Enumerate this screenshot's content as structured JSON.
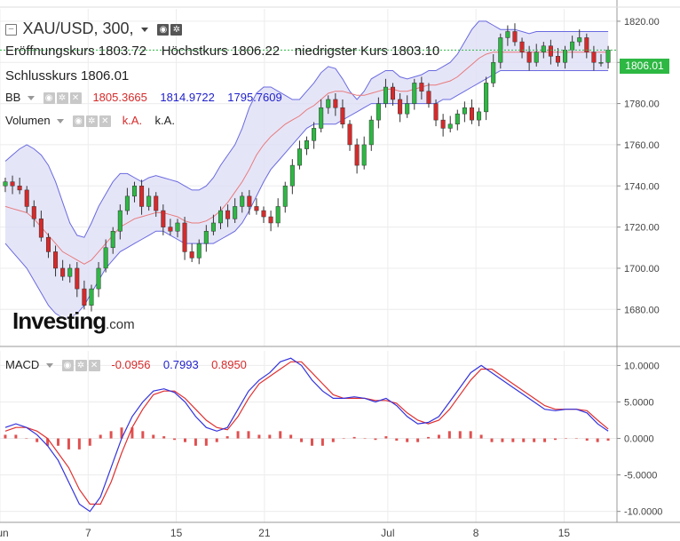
{
  "header": {
    "symbol": "XAU/USD, 300,",
    "open_label": "Eröffnungskurs",
    "open_value": "1803.72",
    "high_label": "Höchstkurs",
    "high_value": "1806.22",
    "low_label": "niedrigster Kurs",
    "low_value": "1803.10",
    "close_label": "Schlusskurs",
    "close_value": "1806.01"
  },
  "indicators": {
    "bb": {
      "label": "BB",
      "v1": "1805.3665",
      "v2": "1814.9722",
      "v3": "1795.7609"
    },
    "volume": {
      "label": "Volumen",
      "v1": "k.A.",
      "v2": "k.A."
    },
    "macd": {
      "label": "MACD",
      "v1": "-0.0956",
      "v2": "0.7993",
      "v3": "0.8950"
    }
  },
  "price_tag": "1806.01",
  "logo": {
    "main": "Investing",
    "suffix": ".com"
  },
  "colors": {
    "up": "#2db843",
    "down": "#d62a2a",
    "band_fill": "#dcdcf5",
    "band_line": "#6a6ae0",
    "sma": "#e87a7a",
    "macd_line": "#3333dd",
    "signal_line": "#e03030",
    "hist": "#e05050",
    "bb_mid_text": "#d62a2a",
    "bb_upper_text": "#2222cc",
    "bb_lower_text": "#2222cc"
  },
  "chart_data": [
    {
      "type": "candlestick",
      "title": "XAU/USD, 300",
      "y_ticks": [
        1680,
        1700,
        1720,
        1740,
        1760,
        1780,
        1800,
        1820
      ],
      "y_tick_labels": [
        "1680.00",
        "1700.00",
        "1720.00",
        "1740.00",
        "1760.00",
        "1780.00",
        "1800.00",
        "1820.00"
      ],
      "ylim": [
        1662,
        1826
      ],
      "x_tick_labels": [
        "Jun",
        "7",
        "15",
        "21",
        "Jul",
        "8",
        "15"
      ],
      "x_tick_pos": [
        0,
        5,
        10,
        15,
        22,
        27,
        32
      ],
      "x_range": [
        0,
        35
      ],
      "close": [
        1742,
        1740,
        1738,
        1730,
        1724,
        1715,
        1708,
        1700,
        1696,
        1700,
        1690,
        1682,
        1690,
        1700,
        1710,
        1718,
        1728,
        1735,
        1740,
        1730,
        1735,
        1728,
        1720,
        1718,
        1722,
        1708,
        1705,
        1712,
        1718,
        1722,
        1728,
        1724,
        1730,
        1735,
        1730,
        1728,
        1725,
        1722,
        1730,
        1740,
        1750,
        1758,
        1762,
        1768,
        1778,
        1782,
        1778,
        1770,
        1760,
        1750,
        1760,
        1772,
        1780,
        1788,
        1782,
        1775,
        1780,
        1790,
        1786,
        1780,
        1772,
        1768,
        1770,
        1775,
        1778,
        1772,
        1776,
        1790,
        1800,
        1812,
        1815,
        1810,
        1805,
        1800,
        1805,
        1808,
        1803,
        1800,
        1806,
        1810,
        1812,
        1805,
        1800,
        1800,
        1806
      ],
      "bb_upper": [
        1752,
        1755,
        1758,
        1760,
        1758,
        1755,
        1750,
        1742,
        1732,
        1722,
        1716,
        1715,
        1722,
        1730,
        1736,
        1742,
        1746,
        1746,
        1744,
        1742,
        1744,
        1745,
        1744,
        1743,
        1742,
        1740,
        1738,
        1738,
        1740,
        1744,
        1750,
        1755,
        1760,
        1768,
        1778,
        1785,
        1788,
        1788,
        1786,
        1784,
        1782,
        1782,
        1786,
        1790,
        1795,
        1798,
        1797,
        1792,
        1786,
        1782,
        1786,
        1792,
        1794,
        1796,
        1796,
        1793,
        1792,
        1793,
        1794,
        1796,
        1796,
        1798,
        1800,
        1804,
        1810,
        1816,
        1820,
        1820,
        1818,
        1816,
        1816,
        1816,
        1815,
        1814,
        1815,
        1815,
        1815,
        1815,
        1815,
        1815,
        1815,
        1815,
        1815,
        1815,
        1815
      ],
      "bb_mid": [
        1730,
        1729,
        1728,
        1727,
        1724,
        1720,
        1716,
        1712,
        1708,
        1706,
        1704,
        1702,
        1704,
        1708,
        1712,
        1716,
        1720,
        1722,
        1724,
        1725,
        1726,
        1727,
        1727,
        1726,
        1725,
        1723,
        1722,
        1722,
        1723,
        1725,
        1728,
        1732,
        1737,
        1742,
        1748,
        1755,
        1760,
        1764,
        1767,
        1770,
        1772,
        1774,
        1777,
        1779,
        1782,
        1785,
        1786,
        1786,
        1785,
        1784,
        1784,
        1785,
        1786,
        1787,
        1787,
        1786,
        1786,
        1787,
        1788,
        1789,
        1789,
        1790,
        1791,
        1793,
        1796,
        1799,
        1802,
        1804,
        1805,
        1805,
        1805,
        1805,
        1805,
        1805,
        1805,
        1805,
        1805,
        1805,
        1805,
        1805,
        1805,
        1805,
        1805,
        1805,
        1805
      ],
      "bb_lower": [
        1712,
        1708,
        1704,
        1700,
        1694,
        1688,
        1682,
        1678,
        1676,
        1676,
        1678,
        1682,
        1688,
        1694,
        1700,
        1704,
        1708,
        1710,
        1712,
        1714,
        1716,
        1718,
        1718,
        1716,
        1714,
        1712,
        1712,
        1712,
        1712,
        1712,
        1714,
        1716,
        1718,
        1722,
        1728,
        1735,
        1742,
        1748,
        1752,
        1756,
        1760,
        1764,
        1768,
        1770,
        1770,
        1770,
        1770,
        1772,
        1774,
        1776,
        1778,
        1780,
        1780,
        1780,
        1780,
        1780,
        1780,
        1780,
        1780,
        1780,
        1780,
        1782,
        1782,
        1784,
        1786,
        1788,
        1790,
        1792,
        1794,
        1796,
        1796,
        1796,
        1796,
        1796,
        1796,
        1796,
        1796,
        1796,
        1796,
        1796,
        1796,
        1796,
        1796,
        1796,
        1796
      ]
    },
    {
      "type": "line",
      "title": "MACD",
      "y_ticks": [
        -10,
        -5,
        0,
        5,
        10
      ],
      "y_tick_labels": [
        "-10.0000",
        "-5.0000",
        "0.0000",
        "5.0000",
        "10.0000"
      ],
      "ylim": [
        -11.5,
        12
      ],
      "x_range": [
        0,
        35
      ],
      "series": [
        {
          "name": "MACD",
          "values": [
            1.5,
            2,
            1.5,
            0.5,
            -1,
            -3,
            -6,
            -9,
            -10,
            -8,
            -4,
            0,
            3,
            5,
            6.5,
            6.8,
            6.3,
            5,
            3,
            1.5,
            1,
            1.5,
            4,
            6.5,
            8,
            9,
            10.5,
            11,
            10,
            8,
            6.5,
            5.5,
            5.5,
            5.7,
            5.5,
            5,
            5.5,
            4.5,
            3,
            2,
            2.2,
            3,
            5,
            7,
            9,
            10,
            9,
            8,
            7,
            6,
            5,
            4,
            3.8,
            4,
            4,
            3.5,
            2,
            1
          ]
        },
        {
          "name": "Signal",
          "values": [
            1,
            1.5,
            1.5,
            1,
            0,
            -2,
            -4,
            -7,
            -9,
            -9,
            -6,
            -2,
            1.5,
            4,
            6,
            6.5,
            6.5,
            5.5,
            4,
            2.5,
            1.5,
            1.2,
            3,
            5.5,
            7.5,
            8.5,
            9.5,
            10.5,
            10.5,
            9,
            7.5,
            6,
            5.5,
            5.5,
            5.5,
            5.2,
            5.2,
            4.8,
            3.5,
            2.5,
            2,
            2.5,
            4,
            6,
            8,
            9.5,
            9.5,
            8.5,
            7.5,
            6.5,
            5.5,
            4.5,
            4,
            4,
            4,
            3.8,
            2.5,
            1.3
          ]
        },
        {
          "name": "Histogram",
          "values": [
            0.5,
            0.5,
            0,
            -0.5,
            -1,
            -1,
            -1.5,
            -1.5,
            -1,
            0.5,
            1,
            1.5,
            1.5,
            1,
            0.5,
            0.3,
            -0.2,
            -0.5,
            -1,
            -1,
            -0.5,
            0.3,
            1,
            1,
            0.5,
            0.5,
            1,
            0.5,
            -0.5,
            -1,
            -1,
            -0.5,
            0,
            0.2,
            0,
            -0.2,
            0.3,
            -0.3,
            -0.5,
            -0.5,
            0.2,
            0.5,
            1,
            1,
            1,
            0.5,
            -0.5,
            -0.5,
            -0.5,
            -0.5,
            -0.5,
            -0.5,
            -0.2,
            0,
            0,
            -0.3,
            -0.5,
            -0.3
          ]
        }
      ]
    }
  ]
}
